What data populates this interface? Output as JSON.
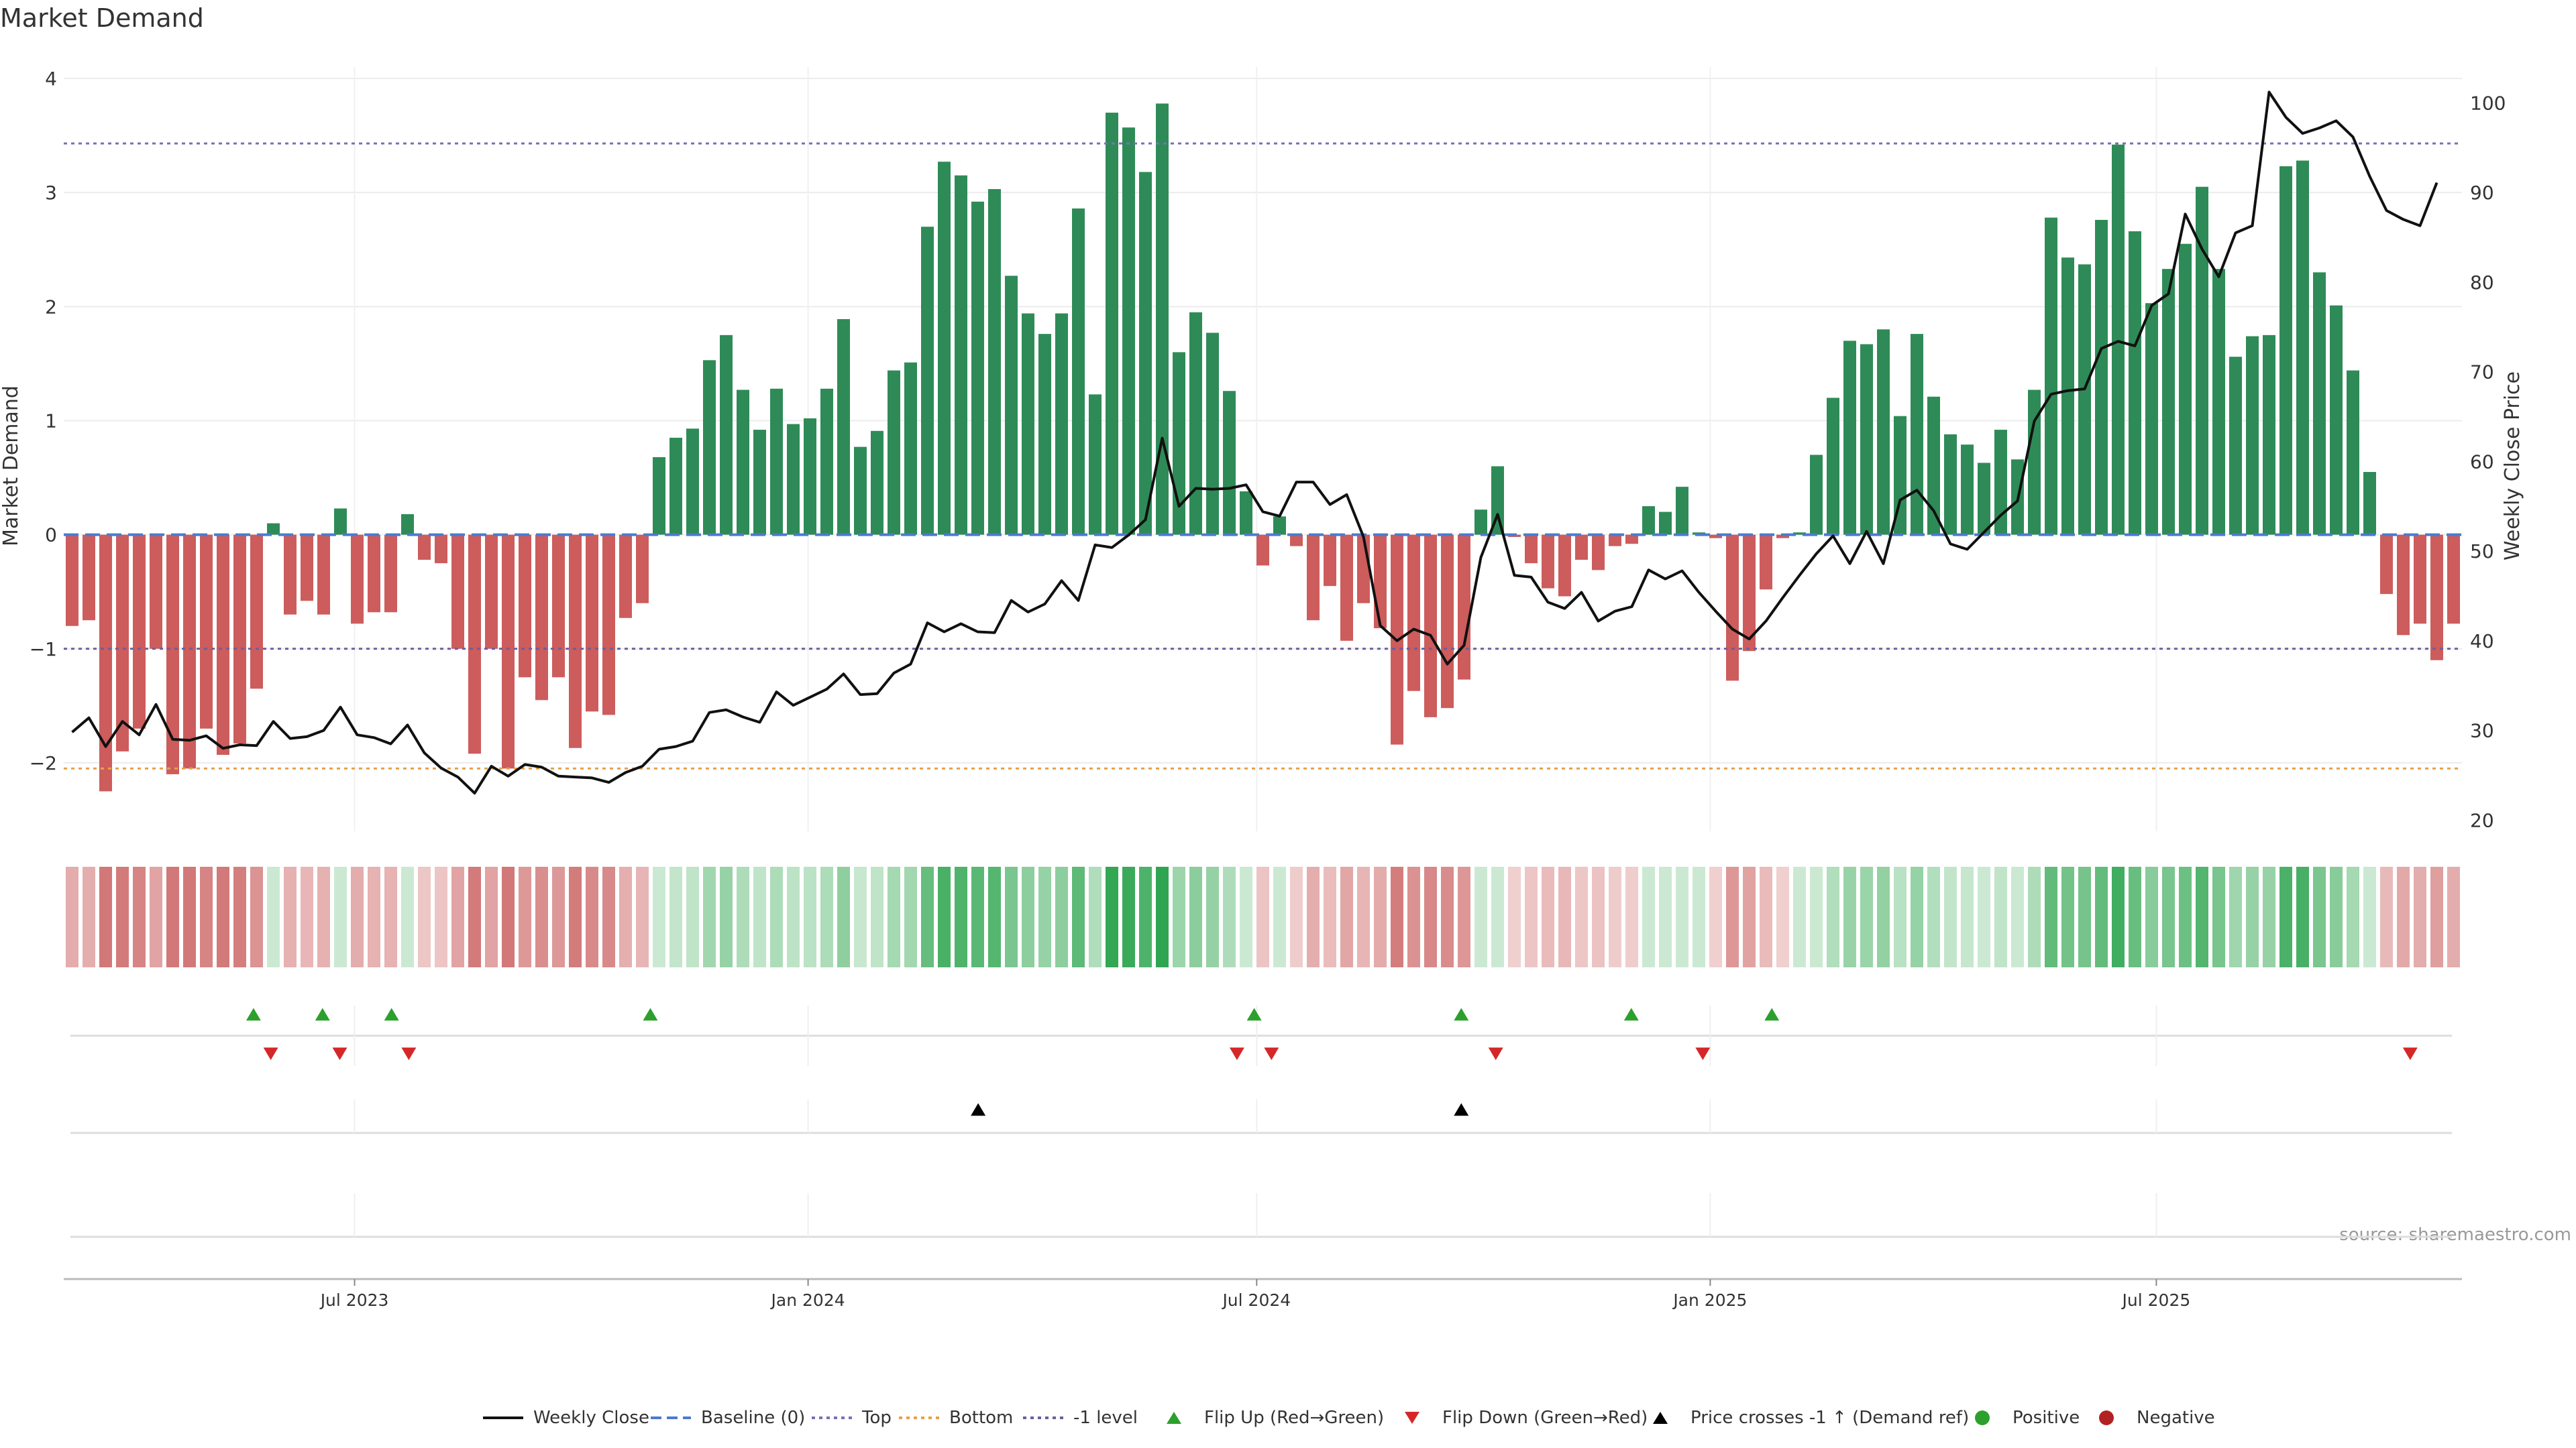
{
  "chart_data": {
    "type": "bar",
    "title": "Market Demand",
    "ylabel": "Market Demand",
    "y2label": "Weekly Close Price",
    "ylim": [
      -2.6,
      4.1
    ],
    "y2lim": [
      18.75,
      104
    ],
    "yticks": [
      -2,
      -1,
      0,
      1,
      2,
      3,
      4
    ],
    "y2ticks": [
      20,
      30,
      40,
      50,
      60,
      70,
      80,
      90,
      100
    ],
    "grid": true,
    "x_start": "2023-03-05",
    "x_end": "2025-11-02",
    "xticks": [
      {
        "date": "2023-07-01",
        "label": "Jul 2023"
      },
      {
        "date": "2024-01-01",
        "label": "Jan 2024"
      },
      {
        "date": "2024-07-01",
        "label": "Jul 2024"
      },
      {
        "date": "2025-01-01",
        "label": "Jan 2025"
      },
      {
        "date": "2025-07-01",
        "label": "Jul 2025"
      }
    ],
    "reference_lines": [
      {
        "name": "Baseline (0)",
        "value": 0,
        "color": "#4a7bd0"
      },
      {
        "name": "Top",
        "value": 3.43,
        "color": "#7a6fb4"
      },
      {
        "name": "Bottom",
        "value": -2.05,
        "color": "#e8a04a"
      },
      {
        "name": "-1 level",
        "value": -1,
        "color": "#6b5f9a"
      }
    ],
    "demand": [
      -0.8,
      -0.75,
      -2.25,
      -1.9,
      -1.7,
      -1.0,
      -2.1,
      -2.05,
      -1.7,
      -1.93,
      -1.83,
      -1.35,
      0.1,
      -0.7,
      -0.58,
      -0.7,
      0.23,
      -0.78,
      -0.68,
      -0.68,
      0.18,
      -0.22,
      -0.25,
      -1.0,
      -1.92,
      -1.0,
      -2.05,
      -1.25,
      -1.45,
      -1.25,
      -1.87,
      -1.55,
      -1.58,
      -0.73,
      -0.6,
      0.68,
      0.85,
      0.93,
      1.53,
      1.75,
      1.27,
      0.92,
      1.28,
      0.97,
      1.02,
      1.28,
      1.89,
      0.77,
      0.91,
      1.44,
      1.51,
      2.7,
      3.27,
      3.15,
      2.92,
      3.03,
      2.27,
      1.94,
      1.76,
      1.94,
      2.86,
      1.23,
      3.7,
      3.57,
      3.18,
      3.78,
      1.6,
      1.95,
      1.77,
      1.26,
      0.38,
      -0.27,
      0.16,
      -0.1,
      -0.75,
      -0.45,
      -0.93,
      -0.6,
      -0.82,
      -1.84,
      -1.37,
      -1.6,
      -1.52,
      -1.27,
      0.22,
      0.6,
      -0.02,
      -0.25,
      -0.47,
      -0.54,
      -0.22,
      -0.31,
      -0.1,
      -0.08,
      0.25,
      0.2,
      0.42,
      0.02,
      -0.03,
      -1.28,
      -1.02,
      -0.48,
      -0.03,
      0.02,
      0.7,
      1.2,
      1.7,
      1.67,
      1.8,
      1.04,
      1.76,
      1.21,
      0.88,
      0.79,
      0.63,
      0.92,
      0.66,
      1.27,
      2.78,
      2.43,
      2.37,
      2.76,
      3.42,
      2.66,
      2.03,
      2.33,
      2.55,
      3.05,
      2.33,
      1.56,
      1.74,
      1.75,
      3.23,
      3.28,
      2.3,
      2.01,
      1.44,
      0.55,
      -0.52,
      -0.88,
      -0.78,
      -1.1,
      -0.78
    ],
    "weekly_close": [
      29.8,
      31.4,
      28.2,
      31.0,
      29.5,
      32.9,
      29.0,
      28.9,
      29.4,
      28.0,
      28.4,
      28.3,
      31.0,
      29.1,
      29.3,
      30.0,
      32.6,
      29.5,
      29.2,
      28.5,
      30.6,
      27.5,
      25.8,
      24.8,
      23.0,
      26.0,
      24.9,
      26.2,
      25.9,
      24.9,
      24.8,
      24.7,
      24.2,
      25.3,
      26.0,
      27.9,
      28.2,
      28.8,
      32.0,
      32.3,
      31.5,
      30.9,
      34.3,
      32.8,
      33.7,
      34.6,
      36.3,
      34.0,
      34.1,
      36.4,
      37.4,
      42.0,
      41.0,
      41.9,
      41.0,
      40.9,
      44.5,
      43.2,
      44.1,
      46.7,
      44.5,
      50.7,
      50.4,
      51.8,
      53.5,
      62.6,
      55.0,
      57.0,
      56.9,
      57.0,
      57.4,
      54.4,
      53.9,
      57.7,
      57.7,
      55.2,
      56.3,
      51.6,
      41.7,
      40.0,
      41.3,
      40.6,
      37.4,
      39.5,
      49.3,
      54.1,
      47.3,
      47.1,
      44.3,
      43.6,
      45.4,
      42.2,
      43.3,
      43.8,
      47.9,
      46.9,
      47.8,
      45.4,
      43.3,
      41.3,
      40.2,
      42.2,
      44.8,
      47.3,
      49.7,
      51.7,
      48.6,
      52.2,
      48.6,
      55.7,
      56.8,
      54.5,
      50.8,
      50.2,
      52.1,
      54.0,
      55.6,
      64.5,
      67.5,
      67.9,
      68.1,
      72.6,
      73.4,
      72.9,
      77.4,
      78.7,
      87.6,
      83.7,
      80.6,
      85.5,
      86.3,
      101.2,
      98.4,
      96.6,
      97.2,
      98.0,
      96.2,
      91.8,
      88.0,
      87.0,
      86.3,
      91.1
    ],
    "signals": {
      "flip_up_dates": [
        "2023-05-21",
        "2023-06-18",
        "2023-07-16",
        "2023-10-29",
        "2024-06-30",
        "2024-09-22",
        "2024-11-30",
        "2025-01-26"
      ],
      "flip_down_dates": [
        "2023-05-28",
        "2023-06-25",
        "2023-07-23",
        "2024-06-23",
        "2024-07-07",
        "2024-10-06",
        "2024-12-29",
        "2025-10-12"
      ],
      "price_cross_dates": [
        "2024-03-10",
        "2024-09-22"
      ]
    },
    "legend_position": "bottom",
    "legend": [
      {
        "label": "Weekly Close",
        "kind": "line-solid",
        "color": "#111111"
      },
      {
        "label": "Baseline (0)",
        "kind": "line-dashed",
        "color": "#4a7bd0"
      },
      {
        "label": "Top",
        "kind": "line-dotted",
        "color": "#7a6fb4"
      },
      {
        "label": "Bottom",
        "kind": "line-dotted",
        "color": "#e8a04a"
      },
      {
        "label": "-1 level",
        "kind": "line-dotted",
        "color": "#6b5f9a"
      },
      {
        "label": "Flip Up (Red→Green)",
        "kind": "triangle-up",
        "color": "#2ca02c"
      },
      {
        "label": "Flip Down (Green→Red)",
        "kind": "triangle-down",
        "color": "#d62728"
      },
      {
        "label": "Price crosses -1 ↑ (Demand ref)",
        "kind": "triangle-up",
        "color": "#000000"
      },
      {
        "label": "Positive",
        "kind": "dot",
        "color": "#2ca02c"
      },
      {
        "label": "Negative",
        "kind": "dot",
        "color": "#b22222"
      }
    ],
    "source": "source: sharemaestro.com",
    "colors": {
      "positive_bar": "#2e8b57",
      "negative_bar": "#cd5c5c",
      "price_line": "#111111"
    }
  }
}
